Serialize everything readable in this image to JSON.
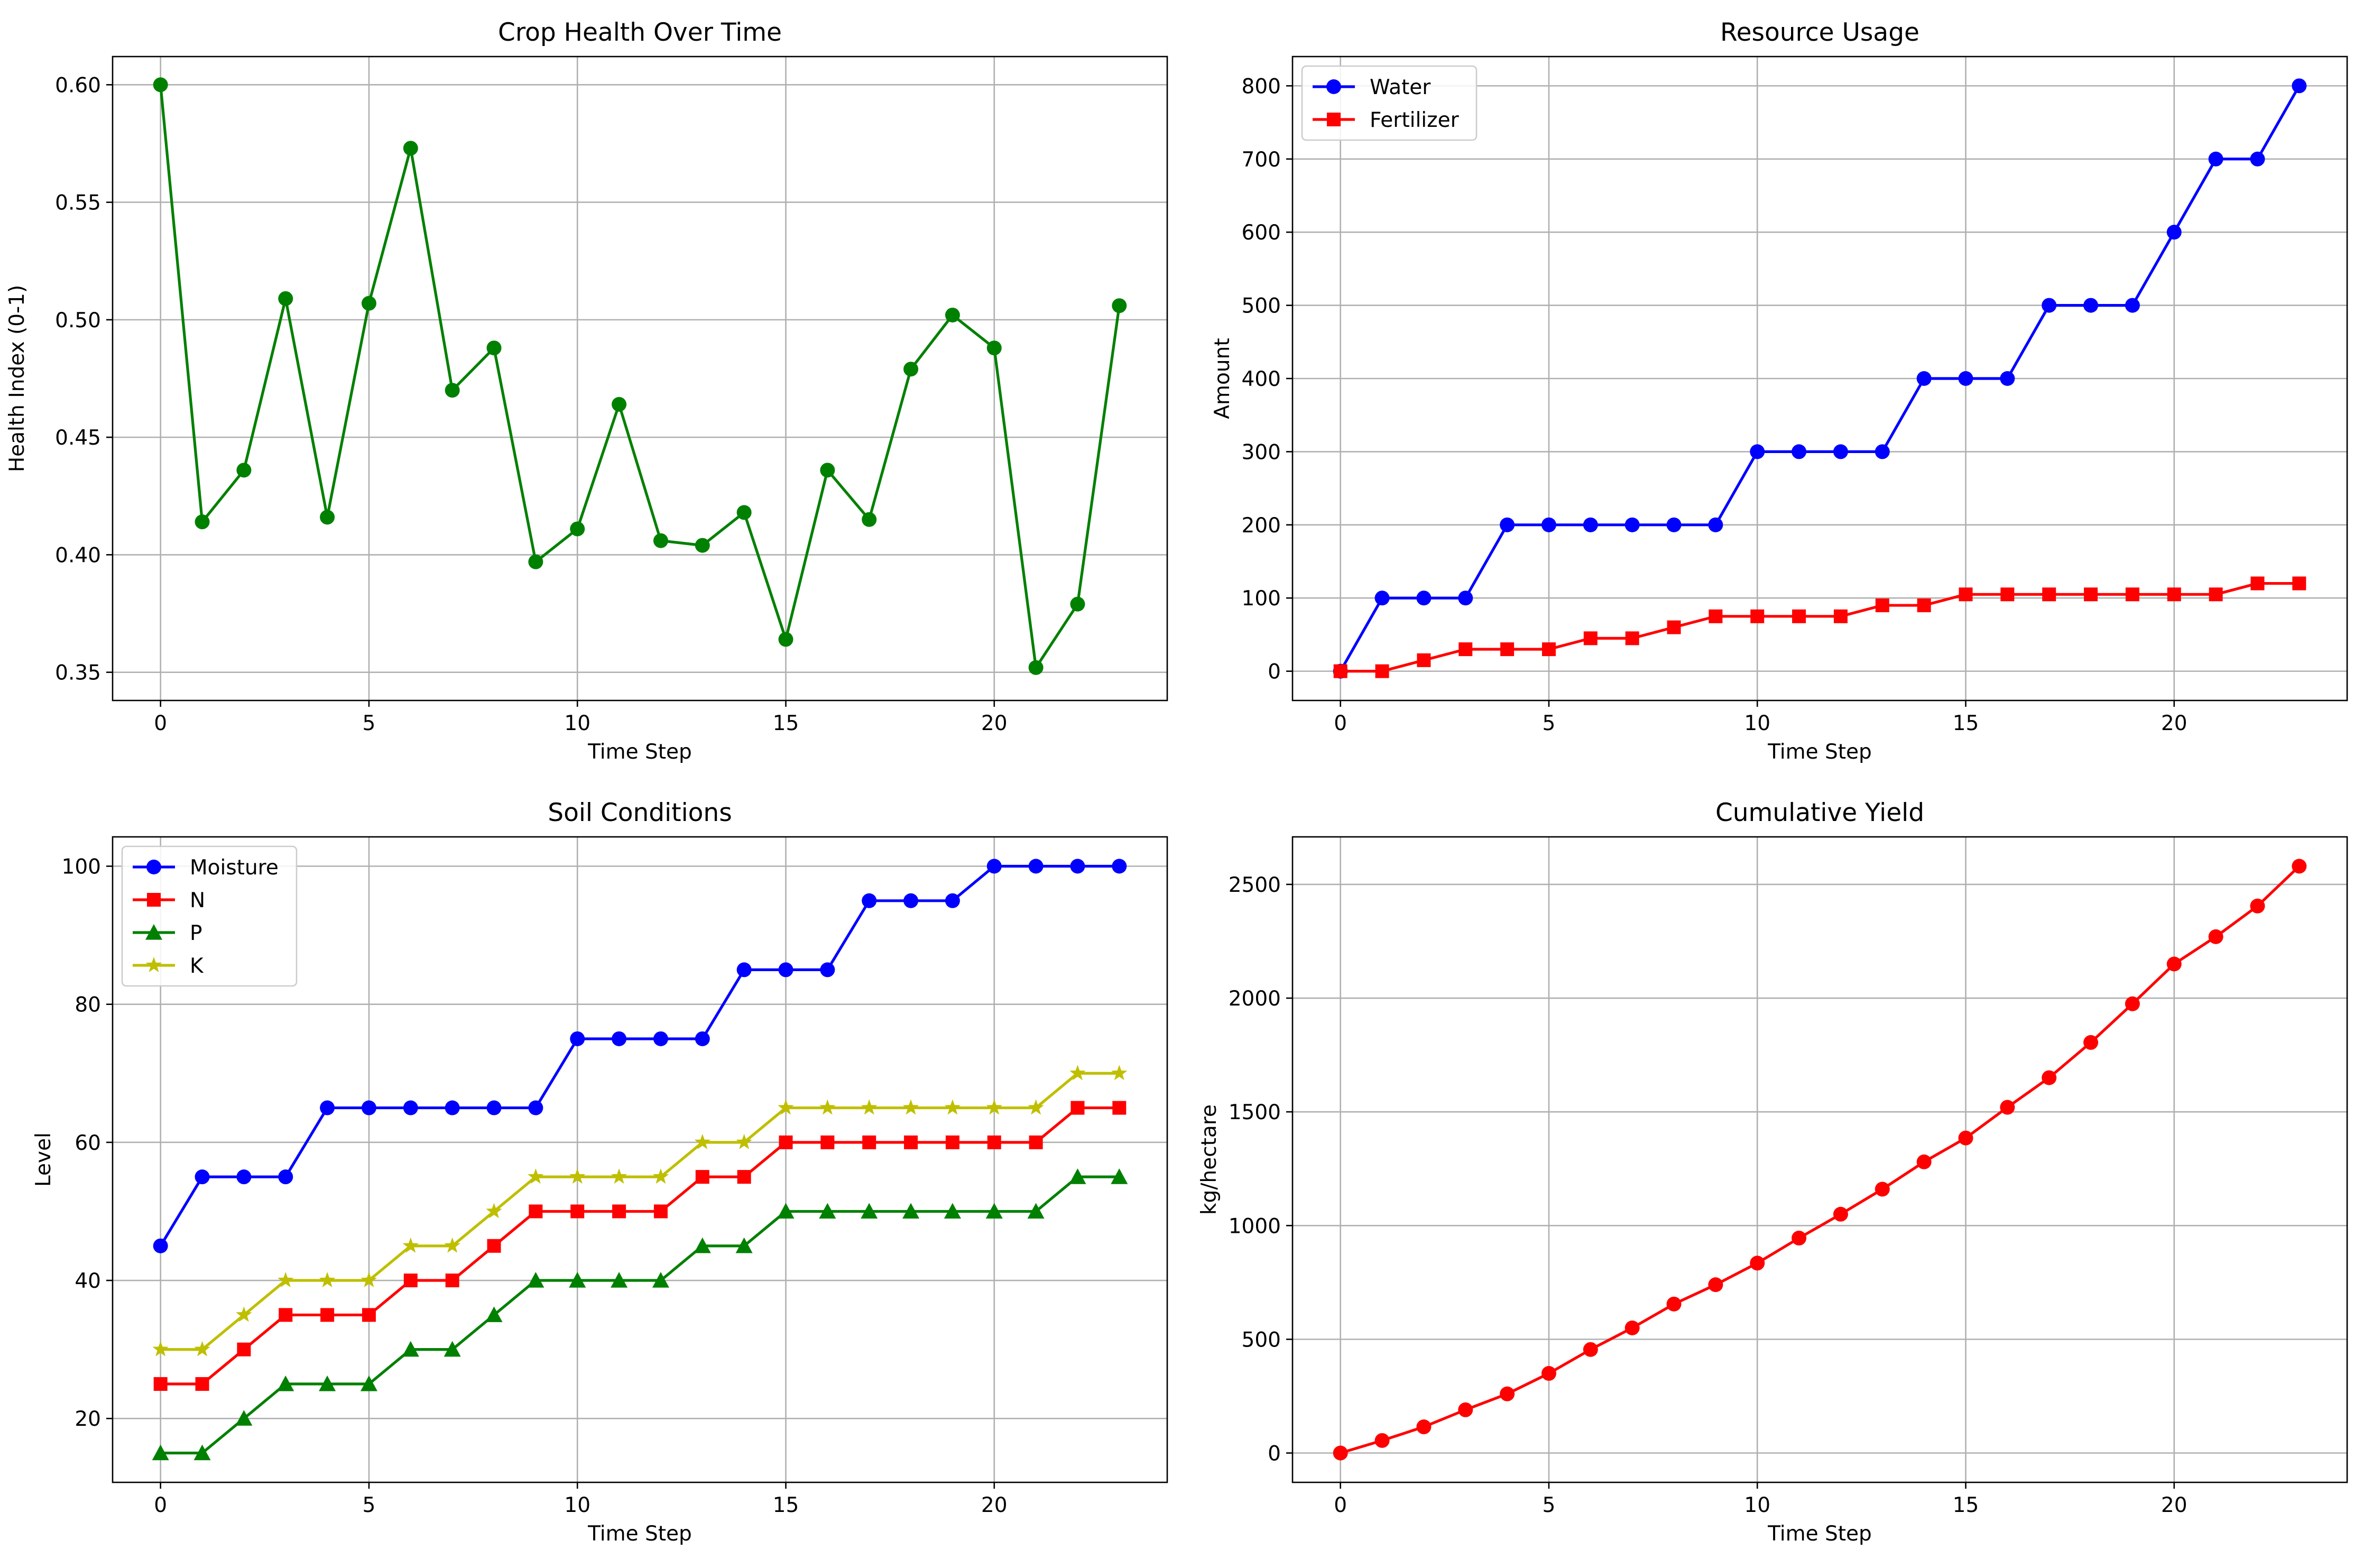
{
  "chart_data": [
    {
      "type": "line",
      "title": "Crop Health Over Time",
      "xlabel": "Time Step",
      "ylabel": "Health Index (0-1)",
      "xlim": [
        -1.15,
        24.15
      ],
      "ylim": [
        0.338,
        0.612
      ],
      "xticks": [
        0,
        5,
        10,
        15,
        20
      ],
      "yticks": [
        0.35,
        0.4,
        0.45,
        0.5,
        0.55,
        0.6
      ],
      "ytick_labels": [
        "0.35",
        "0.40",
        "0.45",
        "0.50",
        "0.55",
        "0.60"
      ],
      "grid": true,
      "legend": null,
      "series": [
        {
          "name": "",
          "color": "#008000",
          "marker": "circle",
          "x": [
            0,
            1,
            2,
            3,
            4,
            5,
            6,
            7,
            8,
            9,
            10,
            11,
            12,
            13,
            14,
            15,
            16,
            17,
            18,
            19,
            20,
            21,
            22,
            23
          ],
          "values": [
            0.6,
            0.414,
            0.436,
            0.509,
            0.416,
            0.507,
            0.573,
            0.47,
            0.488,
            0.397,
            0.411,
            0.464,
            0.406,
            0.404,
            0.418,
            0.364,
            0.436,
            0.415,
            0.479,
            0.502,
            0.488,
            0.352,
            0.379,
            0.506
          ]
        }
      ]
    },
    {
      "type": "line",
      "title": "Resource Usage",
      "xlabel": "Time Step",
      "ylabel": "Amount",
      "xlim": [
        -1.15,
        24.15
      ],
      "ylim": [
        -40,
        840
      ],
      "xticks": [
        0,
        5,
        10,
        15,
        20
      ],
      "yticks": [
        0,
        100,
        200,
        300,
        400,
        500,
        600,
        700,
        800
      ],
      "ytick_labels": [
        "0",
        "100",
        "200",
        "300",
        "400",
        "500",
        "600",
        "700",
        "800"
      ],
      "grid": true,
      "legend": "upper left",
      "series": [
        {
          "name": "Water",
          "color": "#0000ff",
          "marker": "circle",
          "x": [
            0,
            1,
            2,
            3,
            4,
            5,
            6,
            7,
            8,
            9,
            10,
            11,
            12,
            13,
            14,
            15,
            16,
            17,
            18,
            19,
            20,
            21,
            22,
            23
          ],
          "values": [
            0,
            100,
            100,
            100,
            200,
            200,
            200,
            200,
            200,
            200,
            300,
            300,
            300,
            300,
            400,
            400,
            400,
            500,
            500,
            500,
            600,
            700,
            700,
            800
          ]
        },
        {
          "name": "Fertilizer",
          "color": "#ff0000",
          "marker": "square",
          "x": [
            0,
            1,
            2,
            3,
            4,
            5,
            6,
            7,
            8,
            9,
            10,
            11,
            12,
            13,
            14,
            15,
            16,
            17,
            18,
            19,
            20,
            21,
            22,
            23
          ],
          "values": [
            0,
            0,
            15,
            30,
            30,
            30,
            45,
            45,
            60,
            75,
            75,
            75,
            75,
            90,
            90,
            105,
            105,
            105,
            105,
            105,
            105,
            105,
            120,
            120
          ]
        }
      ]
    },
    {
      "type": "line",
      "title": "Soil Conditions",
      "xlabel": "Time Step",
      "ylabel": "Level",
      "xlim": [
        -1.15,
        24.15
      ],
      "ylim": [
        10.75,
        104.25
      ],
      "xticks": [
        0,
        5,
        10,
        15,
        20
      ],
      "yticks": [
        20,
        40,
        60,
        80,
        100
      ],
      "ytick_labels": [
        "20",
        "40",
        "60",
        "80",
        "100"
      ],
      "grid": true,
      "legend": "upper left",
      "series": [
        {
          "name": "Moisture",
          "color": "#0000ff",
          "marker": "circle",
          "x": [
            0,
            1,
            2,
            3,
            4,
            5,
            6,
            7,
            8,
            9,
            10,
            11,
            12,
            13,
            14,
            15,
            16,
            17,
            18,
            19,
            20,
            21,
            22,
            23
          ],
          "values": [
            45,
            55,
            55,
            55,
            65,
            65,
            65,
            65,
            65,
            65,
            75,
            75,
            75,
            75,
            85,
            85,
            85,
            95,
            95,
            95,
            100,
            100,
            100,
            100
          ]
        },
        {
          "name": "N",
          "color": "#ff0000",
          "marker": "square",
          "x": [
            0,
            1,
            2,
            3,
            4,
            5,
            6,
            7,
            8,
            9,
            10,
            11,
            12,
            13,
            14,
            15,
            16,
            17,
            18,
            19,
            20,
            21,
            22,
            23
          ],
          "values": [
            25,
            25,
            30,
            35,
            35,
            35,
            40,
            40,
            45,
            50,
            50,
            50,
            50,
            55,
            55,
            60,
            60,
            60,
            60,
            60,
            60,
            60,
            65,
            65
          ]
        },
        {
          "name": "P",
          "color": "#008000",
          "marker": "triangle",
          "x": [
            0,
            1,
            2,
            3,
            4,
            5,
            6,
            7,
            8,
            9,
            10,
            11,
            12,
            13,
            14,
            15,
            16,
            17,
            18,
            19,
            20,
            21,
            22,
            23
          ],
          "values": [
            15,
            15,
            20,
            25,
            25,
            25,
            30,
            30,
            35,
            40,
            40,
            40,
            40,
            45,
            45,
            50,
            50,
            50,
            50,
            50,
            50,
            50,
            55,
            55
          ]
        },
        {
          "name": "K",
          "color": "#bfbf00",
          "marker": "star",
          "x": [
            0,
            1,
            2,
            3,
            4,
            5,
            6,
            7,
            8,
            9,
            10,
            11,
            12,
            13,
            14,
            15,
            16,
            17,
            18,
            19,
            20,
            21,
            22,
            23
          ],
          "values": [
            30,
            30,
            35,
            40,
            40,
            40,
            45,
            45,
            50,
            55,
            55,
            55,
            55,
            60,
            60,
            65,
            65,
            65,
            65,
            65,
            65,
            65,
            70,
            70
          ]
        }
      ]
    },
    {
      "type": "line",
      "title": "Cumulative Yield",
      "xlabel": "Time Step",
      "ylabel": "kg/hectare",
      "xlim": [
        -1.15,
        24.15
      ],
      "ylim": [
        -129,
        2709
      ],
      "xticks": [
        0,
        5,
        10,
        15,
        20
      ],
      "yticks": [
        0,
        500,
        1000,
        1500,
        2000,
        2500
      ],
      "ytick_labels": [
        "0",
        "500",
        "1000",
        "1500",
        "2000",
        "2500"
      ],
      "grid": true,
      "legend": null,
      "series": [
        {
          "name": "",
          "color": "#ff0000",
          "marker": "circle",
          "x": [
            0,
            1,
            2,
            3,
            4,
            5,
            6,
            7,
            8,
            9,
            10,
            11,
            12,
            13,
            14,
            15,
            16,
            17,
            18,
            19,
            20,
            21,
            22,
            23
          ],
          "values": [
            0,
            55,
            115,
            190,
            260,
            350,
            455,
            550,
            655,
            740,
            835,
            945,
            1050,
            1160,
            1280,
            1385,
            1520,
            1650,
            1805,
            1975,
            2150,
            2270,
            2405,
            2580
          ]
        }
      ]
    }
  ]
}
